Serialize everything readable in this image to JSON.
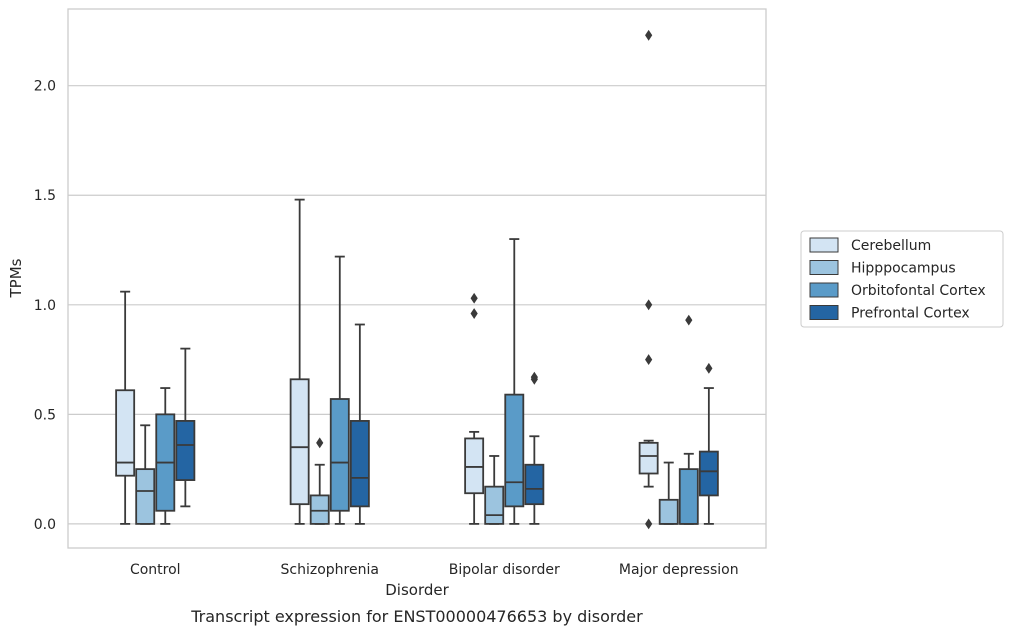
{
  "chart_data": {
    "type": "box",
    "title": "Transcript expression for ENST00000476653 by disorder",
    "xlabel": "Disorder",
    "ylabel": "TPMs",
    "ylim": [
      -0.11,
      2.35
    ],
    "yticks": [
      0.0,
      0.5,
      1.0,
      1.5,
      2.0
    ],
    "ytick_labels": [
      "0.0",
      "0.5",
      "1.0",
      "1.5",
      "2.0"
    ],
    "categories": [
      "Control",
      "Schizophrenia",
      "Bipolar disorder",
      "Major depression"
    ],
    "grid": "horizontal",
    "legend_position": "outside-right",
    "series": [
      {
        "name": "Cerebellum",
        "color": "#d3e4f3",
        "boxes": [
          {
            "whislo": 0.0,
            "q1": 0.22,
            "med": 0.28,
            "q3": 0.61,
            "whishi": 1.06,
            "fliers": []
          },
          {
            "whislo": 0.0,
            "q1": 0.09,
            "med": 0.35,
            "q3": 0.66,
            "whishi": 1.48,
            "fliers": []
          },
          {
            "whislo": 0.0,
            "q1": 0.14,
            "med": 0.26,
            "q3": 0.39,
            "whishi": 0.42,
            "fliers": [
              0.96,
              1.03
            ]
          },
          {
            "whislo": 0.17,
            "q1": 0.23,
            "med": 0.31,
            "q3": 0.37,
            "whishi": 0.38,
            "fliers": [
              0.0,
              0.75,
              1.0,
              2.23
            ]
          }
        ]
      },
      {
        "name": "Hipppocampus",
        "color": "#9cc4df",
        "boxes": [
          {
            "whislo": 0.0,
            "q1": 0.0,
            "med": 0.15,
            "q3": 0.25,
            "whishi": 0.45,
            "fliers": []
          },
          {
            "whislo": 0.0,
            "q1": 0.0,
            "med": 0.06,
            "q3": 0.13,
            "whishi": 0.27,
            "fliers": [
              0.37
            ]
          },
          {
            "whislo": 0.0,
            "q1": 0.0,
            "med": 0.04,
            "q3": 0.17,
            "whishi": 0.31,
            "fliers": []
          },
          {
            "whislo": 0.0,
            "q1": 0.0,
            "med": 0.0,
            "q3": 0.11,
            "whishi": 0.28,
            "fliers": []
          }
        ]
      },
      {
        "name": "Orbitofontal Cortex",
        "color": "#5a9bc8",
        "boxes": [
          {
            "whislo": 0.0,
            "q1": 0.06,
            "med": 0.28,
            "q3": 0.5,
            "whishi": 0.62,
            "fliers": []
          },
          {
            "whislo": 0.0,
            "q1": 0.06,
            "med": 0.28,
            "q3": 0.57,
            "whishi": 1.22,
            "fliers": []
          },
          {
            "whislo": 0.0,
            "q1": 0.08,
            "med": 0.19,
            "q3": 0.59,
            "whishi": 1.3,
            "fliers": []
          },
          {
            "whislo": 0.0,
            "q1": 0.0,
            "med": 0.0,
            "q3": 0.25,
            "whishi": 0.32,
            "fliers": [
              0.93
            ]
          }
        ]
      },
      {
        "name": "Prefrontal Cortex",
        "color": "#2465a3",
        "boxes": [
          {
            "whislo": 0.08,
            "q1": 0.2,
            "med": 0.36,
            "q3": 0.47,
            "whishi": 0.8,
            "fliers": []
          },
          {
            "whislo": 0.0,
            "q1": 0.08,
            "med": 0.21,
            "q3": 0.47,
            "whishi": 0.91,
            "fliers": []
          },
          {
            "whislo": 0.0,
            "q1": 0.09,
            "med": 0.16,
            "q3": 0.27,
            "whishi": 0.4,
            "fliers": [
              0.66,
              0.67
            ]
          },
          {
            "whislo": 0.0,
            "q1": 0.13,
            "med": 0.24,
            "q3": 0.33,
            "whishi": 0.62,
            "fliers": [
              0.71
            ]
          }
        ]
      }
    ]
  }
}
